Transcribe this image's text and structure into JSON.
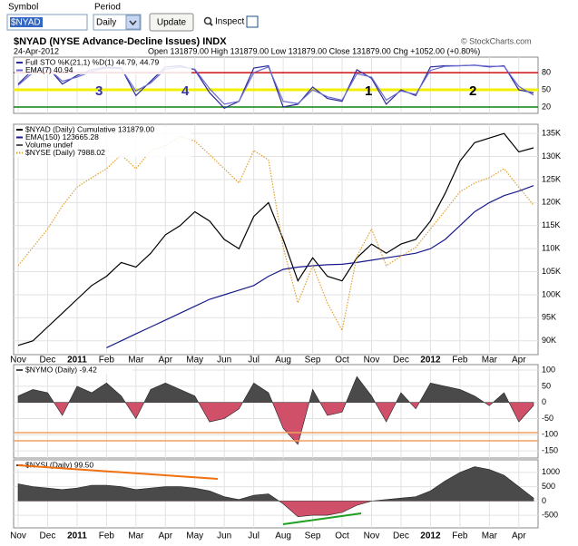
{
  "toolbar": {
    "symbol_label": "Symbol",
    "symbol": "$NYAD",
    "period_label": "Period",
    "period": "Daily",
    "update": "Update",
    "inspect": "Inspect"
  },
  "header": {
    "title": "$NYAD (NYSE Advance-Decline Issues) INDX",
    "date": "24-Apr-2012",
    "quote": "Open 131879.00  High 131879.00  Low 131879.00  Close 131879.00  Chg +1052.00 (+0.80%)",
    "source": "© StockCharts.com"
  },
  "chart_data": [
    {
      "type": "line",
      "ylim": [
        9,
        107
      ],
      "yticks": [
        80,
        50,
        20
      ],
      "level_colors": [
        "#d01010",
        "#f0f000",
        "#108010"
      ],
      "annotations": [
        "3",
        "4",
        "1",
        "2"
      ],
      "series": [
        {
          "name": "Full STO %K(21,1) %D(1) 44.79, 44.79",
          "color": "#2a2a9a",
          "values": [
            60,
            85,
            90,
            60,
            75,
            85,
            90,
            88,
            40,
            65,
            90,
            92,
            85,
            45,
            18,
            30,
            88,
            92,
            20,
            25,
            55,
            35,
            30,
            85,
            70,
            25,
            50,
            40,
            90,
            92,
            92,
            93,
            90,
            92,
            50,
            44.79
          ]
        },
        {
          "name": "EMA(7) 40.94",
          "color": "#6a6ad0",
          "values": [
            58,
            80,
            88,
            65,
            72,
            82,
            88,
            87,
            48,
            62,
            86,
            90,
            86,
            52,
            25,
            30,
            80,
            90,
            30,
            26,
            50,
            38,
            32,
            78,
            72,
            32,
            48,
            42,
            84,
            91,
            92,
            93,
            91,
            91,
            56,
            40.94
          ]
        }
      ]
    },
    {
      "type": "line",
      "ylim": [
        87000,
        137000
      ],
      "y2lim": [
        6560,
        8760
      ],
      "yticks": [
        {
          "value": 90000,
          "label": "90K"
        },
        {
          "value": 95000,
          "label": "95K"
        },
        {
          "value": 100000,
          "label": "100K"
        },
        {
          "value": 105000,
          "label": "105K"
        },
        {
          "value": 110000,
          "label": "110K"
        },
        {
          "value": 115000,
          "label": "115K"
        },
        {
          "value": 120000,
          "label": "120K"
        },
        {
          "value": 125000,
          "label": "125K"
        },
        {
          "value": 130000,
          "label": "130K"
        },
        {
          "value": 135000,
          "label": "135K"
        }
      ],
      "categories": [
        "Nov",
        null,
        "Dec",
        null,
        "2011",
        null,
        "Feb",
        null,
        "Mar",
        null,
        "Apr",
        null,
        "May",
        null,
        "Jun",
        null,
        "Jul",
        null,
        "Aug",
        null,
        "Sep",
        null,
        "Oct",
        null,
        "Nov",
        null,
        "Dec",
        null,
        "2012",
        null,
        "Feb",
        null,
        "Mar",
        null,
        "Apr",
        null
      ],
      "legend_items": [
        "Volume undef"
      ],
      "series": [
        {
          "name": "$NYAD (Daily) Cumulative 131879.00",
          "color": "#000000",
          "values": [
            89000,
            90000,
            93000,
            96000,
            99000,
            102000,
            104000,
            107000,
            106000,
            109000,
            113000,
            115000,
            118000,
            116000,
            112000,
            110000,
            117000,
            120000,
            112000,
            103000,
            108000,
            104000,
            103000,
            108000,
            111000,
            109000,
            111000,
            112000,
            116000,
            122000,
            129000,
            133000,
            134000,
            135000,
            131000,
            131879
          ]
        },
        {
          "name": "EMA(150) 123665.28",
          "color": "#1a1a8c",
          "values": [
            null,
            null,
            null,
            null,
            null,
            null,
            88500,
            90000,
            91500,
            93000,
            94500,
            96000,
            97500,
            99000,
            100000,
            101000,
            102000,
            104000,
            105500,
            106000,
            106300,
            106500,
            106600,
            107000,
            107500,
            108000,
            108500,
            109000,
            110000,
            112000,
            115000,
            118000,
            120000,
            121500,
            122500,
            123665.28
          ]
        },
        {
          "name": "$NYSE (Daily) 7988.02",
          "color": "#e0a030",
          "dashed": true,
          "axis": "y2",
          "values": [
            7410,
            7585,
            7760,
            7980,
            8160,
            8250,
            8335,
            8470,
            8335,
            8510,
            8555,
            8645,
            8600,
            8470,
            8335,
            8200,
            8510,
            8420,
            7585,
            7055,
            7410,
            7055,
            6790,
            7500,
            7760,
            7410,
            7500,
            7585,
            7760,
            7935,
            8115,
            8200,
            8250,
            8335,
            8160,
            7988.02
          ]
        }
      ]
    },
    {
      "type": "area",
      "ylim": [
        -172,
        117
      ],
      "yticks": [
        100,
        50,
        0,
        -50,
        -100,
        -150
      ],
      "colors": {
        "above": "#4a4a4a",
        "below": "#d0506a"
      },
      "series": [
        {
          "name": "$NYMO (Daily) -9.42",
          "values": [
            20,
            40,
            30,
            -40,
            50,
            30,
            60,
            20,
            -50,
            40,
            60,
            40,
            20,
            -60,
            -50,
            -20,
            60,
            30,
            -80,
            -130,
            40,
            -40,
            -30,
            80,
            20,
            -60,
            30,
            -20,
            60,
            50,
            40,
            20,
            -10,
            30,
            -60,
            -9.42
          ]
        }
      ]
    },
    {
      "type": "area",
      "ylim": [
        -940,
        1440
      ],
      "yticks": [
        1000,
        500,
        0,
        -500
      ],
      "colors": {
        "above": "#4a4a4a",
        "below": "#d0506a"
      },
      "categories": [
        "Nov",
        null,
        "Dec",
        null,
        "2011",
        null,
        "Feb",
        null,
        "Mar",
        null,
        "Apr",
        null,
        "May",
        null,
        "Jun",
        null,
        "Jul",
        null,
        "Aug",
        null,
        "Sep",
        null,
        "Oct",
        null,
        "Nov",
        null,
        "Dec",
        null,
        "2012",
        null,
        "Feb",
        null,
        "Mar",
        null,
        "Apr",
        null
      ],
      "series": [
        {
          "name": "$NYSI (Daily) 99.50",
          "values": [
            600,
            500,
            450,
            400,
            450,
            550,
            550,
            500,
            400,
            450,
            500,
            500,
            450,
            350,
            150,
            50,
            200,
            250,
            -100,
            -550,
            -500,
            -500,
            -400,
            -150,
            0,
            50,
            100,
            150,
            350,
            700,
            1000,
            1200,
            1100,
            900,
            500,
            99.5
          ]
        }
      ]
    }
  ]
}
